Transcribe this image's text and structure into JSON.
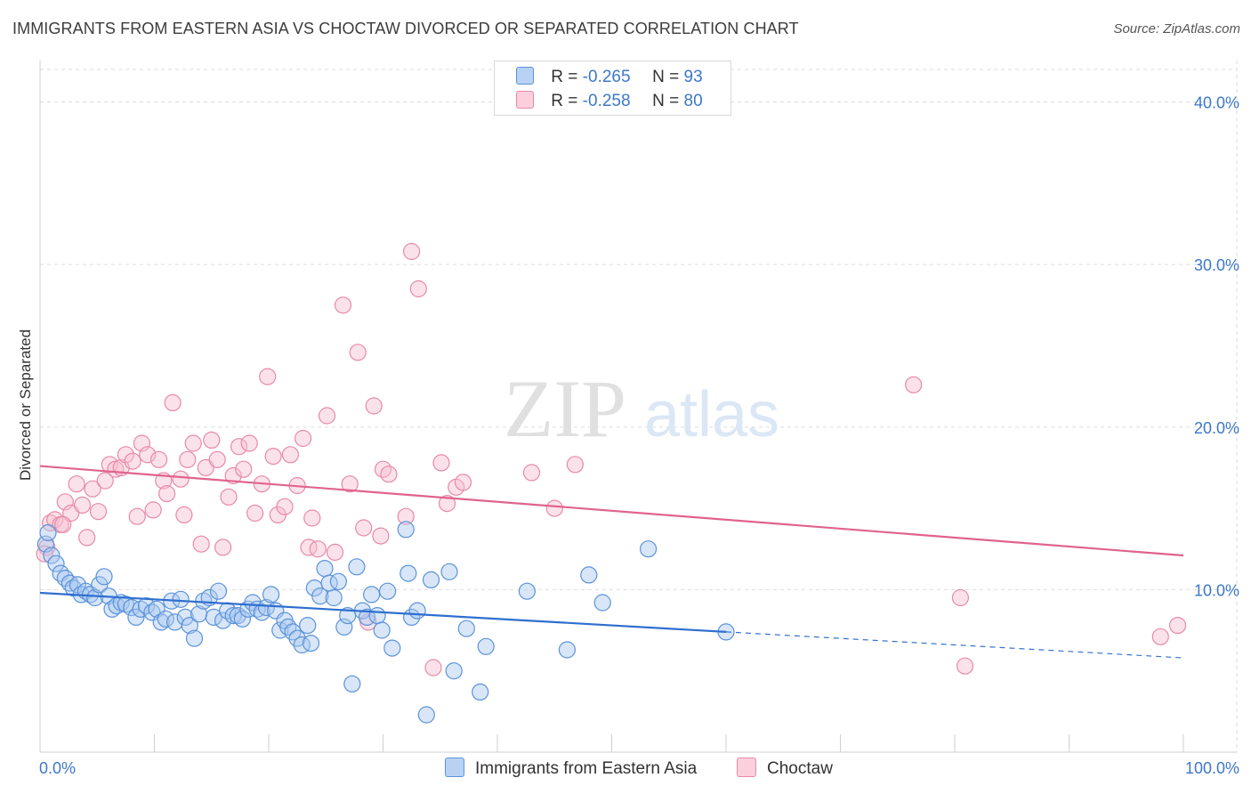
{
  "title": "IMMIGRANTS FROM EASTERN ASIA VS CHOCTAW DIVORCED OR SEPARATED CORRELATION CHART",
  "source": "Source: ZipAtlas.com",
  "watermark": {
    "zip": "ZIP",
    "atlas": "atlas"
  },
  "legend": {
    "rows": [
      {
        "r_label": "R =",
        "r_value": "-0.265",
        "n_label": "N =",
        "n_value": "93"
      },
      {
        "r_label": "R =",
        "r_value": "-0.258",
        "n_label": "N =",
        "n_value": "80"
      }
    ]
  },
  "colors": {
    "blue_fill": "#a9c8f0",
    "blue_stroke": "#5b93d9",
    "blue_line": "#2f6fcf",
    "pink_fill": "#f7bfd0",
    "pink_stroke": "#e889a8",
    "pink_line": "#e0638e",
    "tick_text": "#3d77c9",
    "grid": "#dddddd"
  },
  "chart_data": {
    "type": "scatter",
    "xlabel": "",
    "ylabel": "Divorced or Separated",
    "xlim": [
      0,
      100
    ],
    "ylim": [
      0,
      42
    ],
    "x_tick_labels": [
      "0.0%",
      "100.0%"
    ],
    "y_ticks": [
      10,
      20,
      30,
      40
    ],
    "y_tick_labels": [
      "10.0%",
      "20.0%",
      "30.0%",
      "40.0%"
    ],
    "grid": true,
    "legend_position": "top-center",
    "series": [
      {
        "name": "Immigrants from Eastern Asia",
        "r": -0.265,
        "n": 93,
        "trend": {
          "x0": 0,
          "y0": 9.8,
          "x1": 60,
          "y1": 7.4,
          "dash_to": 100,
          "dash_y": 5.8
        },
        "points": [
          [
            0.5,
            12.8
          ],
          [
            0.7,
            13.5
          ],
          [
            1.0,
            12.1
          ],
          [
            1.4,
            11.6
          ],
          [
            1.8,
            11.0
          ],
          [
            2.2,
            10.7
          ],
          [
            2.6,
            10.4
          ],
          [
            2.9,
            10.1
          ],
          [
            3.3,
            10.3
          ],
          [
            3.6,
            9.7
          ],
          [
            4.0,
            9.9
          ],
          [
            4.4,
            9.7
          ],
          [
            4.8,
            9.5
          ],
          [
            5.2,
            10.3
          ],
          [
            5.6,
            10.8
          ],
          [
            6.0,
            9.6
          ],
          [
            6.3,
            8.8
          ],
          [
            6.7,
            9.0
          ],
          [
            7.1,
            9.2
          ],
          [
            7.5,
            9.1
          ],
          [
            8.0,
            8.9
          ],
          [
            8.4,
            8.3
          ],
          [
            8.8,
            8.8
          ],
          [
            9.3,
            9.0
          ],
          [
            9.8,
            8.6
          ],
          [
            10.2,
            8.8
          ],
          [
            10.6,
            8.0
          ],
          [
            11.0,
            8.2
          ],
          [
            11.5,
            9.3
          ],
          [
            11.8,
            8.0
          ],
          [
            12.3,
            9.4
          ],
          [
            12.7,
            8.3
          ],
          [
            13.1,
            7.8
          ],
          [
            13.5,
            7.0
          ],
          [
            13.9,
            8.5
          ],
          [
            14.3,
            9.3
          ],
          [
            14.8,
            9.5
          ],
          [
            15.2,
            8.3
          ],
          [
            15.6,
            9.9
          ],
          [
            16.0,
            8.1
          ],
          [
            16.4,
            8.7
          ],
          [
            16.9,
            8.4
          ],
          [
            17.3,
            8.4
          ],
          [
            17.7,
            8.2
          ],
          [
            18.2,
            8.8
          ],
          [
            18.6,
            9.2
          ],
          [
            19.0,
            8.8
          ],
          [
            19.4,
            8.6
          ],
          [
            19.8,
            8.9
          ],
          [
            20.2,
            9.7
          ],
          [
            20.6,
            8.7
          ],
          [
            21.0,
            7.5
          ],
          [
            21.4,
            8.1
          ],
          [
            21.7,
            7.7
          ],
          [
            22.1,
            7.4
          ],
          [
            22.5,
            7.0
          ],
          [
            22.9,
            6.6
          ],
          [
            23.4,
            7.8
          ],
          [
            23.7,
            6.7
          ],
          [
            24.0,
            10.1
          ],
          [
            24.5,
            9.6
          ],
          [
            24.9,
            11.3
          ],
          [
            25.3,
            10.4
          ],
          [
            25.7,
            9.5
          ],
          [
            26.1,
            10.5
          ],
          [
            26.6,
            7.7
          ],
          [
            26.9,
            8.4
          ],
          [
            27.3,
            4.2
          ],
          [
            27.7,
            11.4
          ],
          [
            28.2,
            8.7
          ],
          [
            28.6,
            8.3
          ],
          [
            29.0,
            9.7
          ],
          [
            29.5,
            8.4
          ],
          [
            29.9,
            7.5
          ],
          [
            30.4,
            9.9
          ],
          [
            30.8,
            6.4
          ],
          [
            32.0,
            13.7
          ],
          [
            32.2,
            11.0
          ],
          [
            32.5,
            8.3
          ],
          [
            33.0,
            8.7
          ],
          [
            33.8,
            2.3
          ],
          [
            34.2,
            10.6
          ],
          [
            35.8,
            11.1
          ],
          [
            36.2,
            5.0
          ],
          [
            37.3,
            7.6
          ],
          [
            38.5,
            3.7
          ],
          [
            39.0,
            6.5
          ],
          [
            42.6,
            9.9
          ],
          [
            46.1,
            6.3
          ],
          [
            48.0,
            10.9
          ],
          [
            49.2,
            9.2
          ],
          [
            53.2,
            12.5
          ],
          [
            60.0,
            7.4
          ]
        ]
      },
      {
        "name": "Choctaw",
        "r": -0.258,
        "n": 80,
        "trend": {
          "x0": 0,
          "y0": 17.6,
          "x1": 100,
          "y1": 12.1
        },
        "points": [
          [
            0.6,
            12.6
          ],
          [
            0.9,
            14.1
          ],
          [
            1.3,
            14.3
          ],
          [
            1.8,
            14.0
          ],
          [
            2.2,
            15.4
          ],
          [
            2.7,
            14.7
          ],
          [
            3.2,
            16.5
          ],
          [
            3.7,
            15.2
          ],
          [
            4.1,
            13.2
          ],
          [
            4.6,
            16.2
          ],
          [
            5.1,
            14.8
          ],
          [
            5.7,
            16.7
          ],
          [
            6.1,
            17.7
          ],
          [
            6.6,
            17.4
          ],
          [
            7.1,
            17.5
          ],
          [
            7.5,
            18.3
          ],
          [
            8.1,
            17.9
          ],
          [
            8.5,
            14.5
          ],
          [
            8.9,
            19.0
          ],
          [
            9.4,
            18.3
          ],
          [
            9.9,
            14.9
          ],
          [
            10.4,
            18.0
          ],
          [
            10.8,
            16.7
          ],
          [
            11.1,
            15.9
          ],
          [
            11.6,
            21.5
          ],
          [
            12.3,
            16.8
          ],
          [
            12.6,
            14.6
          ],
          [
            12.9,
            18.0
          ],
          [
            13.4,
            19.0
          ],
          [
            14.1,
            12.8
          ],
          [
            14.5,
            17.5
          ],
          [
            15.0,
            19.2
          ],
          [
            15.5,
            18.0
          ],
          [
            16.0,
            12.6
          ],
          [
            16.5,
            15.7
          ],
          [
            16.9,
            17.0
          ],
          [
            17.4,
            18.8
          ],
          [
            17.8,
            17.4
          ],
          [
            18.3,
            19.0
          ],
          [
            18.8,
            14.7
          ],
          [
            19.4,
            16.5
          ],
          [
            19.9,
            23.1
          ],
          [
            20.4,
            18.2
          ],
          [
            20.8,
            14.6
          ],
          [
            21.4,
            15.1
          ],
          [
            21.9,
            18.3
          ],
          [
            22.5,
            16.4
          ],
          [
            23.0,
            19.3
          ],
          [
            23.5,
            12.6
          ],
          [
            23.8,
            14.4
          ],
          [
            24.3,
            12.5
          ],
          [
            25.1,
            20.7
          ],
          [
            25.8,
            12.3
          ],
          [
            26.5,
            27.5
          ],
          [
            27.1,
            16.5
          ],
          [
            27.8,
            24.6
          ],
          [
            28.3,
            13.8
          ],
          [
            28.7,
            8.0
          ],
          [
            29.2,
            21.3
          ],
          [
            29.8,
            13.3
          ],
          [
            30.0,
            17.4
          ],
          [
            30.5,
            17.1
          ],
          [
            32.0,
            14.5
          ],
          [
            32.5,
            30.8
          ],
          [
            33.1,
            28.5
          ],
          [
            34.4,
            5.2
          ],
          [
            35.1,
            17.8
          ],
          [
            35.6,
            15.3
          ],
          [
            36.4,
            16.3
          ],
          [
            37.0,
            16.6
          ],
          [
            43.0,
            17.2
          ],
          [
            45.0,
            15.0
          ],
          [
            46.8,
            17.7
          ],
          [
            76.4,
            22.6
          ],
          [
            80.5,
            9.5
          ],
          [
            80.9,
            5.3
          ],
          [
            98.0,
            7.1
          ],
          [
            99.5,
            7.8
          ],
          [
            0.4,
            12.2
          ],
          [
            2.0,
            14.0
          ]
        ]
      }
    ]
  }
}
